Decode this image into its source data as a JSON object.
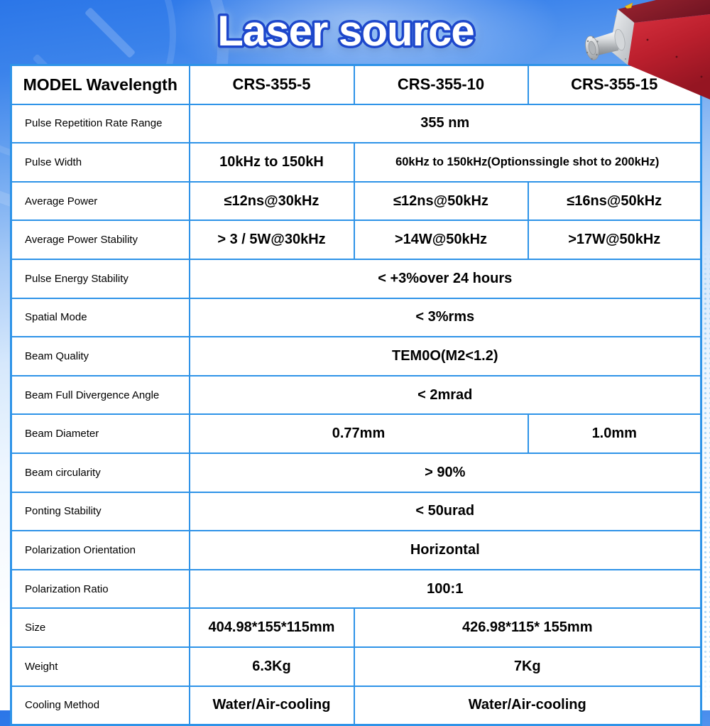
{
  "title": "Laser source",
  "colors": {
    "background_top_blue": "#2b76e8",
    "table_border_blue": "#2e93e8",
    "model_label_blue": "#2b7fe0",
    "title_outline_blue": "#1d47cb",
    "device_red": "#c02733"
  },
  "device": {
    "name": "red laser source module photo"
  },
  "table": {
    "header": {
      "model_label": "MODEL Wavelength",
      "models": [
        "CRS-355-5",
        "CRS-355-10",
        "CRS-355-15"
      ]
    },
    "rows": [
      {
        "label": "Pulse Repetition Rate Range",
        "cells": [
          {
            "text": "355 nm",
            "span": 3
          }
        ]
      },
      {
        "label": "Pulse Width",
        "cells": [
          {
            "text": "10kHz to 150kH",
            "span": 1
          },
          {
            "text": "60kHz to 150kHz(Optionssingle shot to  200kHz)",
            "span": 2,
            "small": true
          }
        ]
      },
      {
        "label": "Average Power",
        "cells": [
          {
            "text": "≤12ns@30kHz",
            "span": 1
          },
          {
            "text": "≤12ns@50kHz",
            "span": 1
          },
          {
            "text": "≤16ns@50kHz",
            "span": 1
          }
        ]
      },
      {
        "label": "Average Power Stability",
        "cells": [
          {
            "text": "> 3 / 5W@30kHz",
            "span": 1
          },
          {
            "text": ">14W@50kHz",
            "span": 1
          },
          {
            "text": ">17W@50kHz",
            "span": 1
          }
        ]
      },
      {
        "label": "Pulse Energy Stability",
        "cells": [
          {
            "text": "< +3%over 24 hours",
            "span": 3
          }
        ]
      },
      {
        "label": "Spatial Mode",
        "cells": [
          {
            "text": "< 3%rms",
            "span": 3
          }
        ]
      },
      {
        "label": "Beam Quality",
        "cells": [
          {
            "text": "TEM0O(M2<1.2)",
            "span": 3
          }
        ]
      },
      {
        "label": "Beam Full Divergence Angle",
        "cells": [
          {
            "text": "< 2mrad",
            "span": 3
          }
        ]
      },
      {
        "label": "Beam Diameter",
        "cells": [
          {
            "text": "0.77mm",
            "span": 2
          },
          {
            "text": "1.0mm",
            "span": 1
          }
        ]
      },
      {
        "label": "Beam circularity",
        "cells": [
          {
            "text": "> 90%",
            "span": 3
          }
        ]
      },
      {
        "label": "Ponting Stability",
        "cells": [
          {
            "text": "< 50urad",
            "span": 3
          }
        ]
      },
      {
        "label": "Polarization Orientation",
        "cells": [
          {
            "text": "Horizontal",
            "span": 3
          }
        ]
      },
      {
        "label": "Polarization Ratio",
        "cells": [
          {
            "text": "100:1",
            "span": 3
          }
        ]
      },
      {
        "label": "Size",
        "cells": [
          {
            "text": "404.98*155*115mm",
            "span": 1
          },
          {
            "text": "426.98*115* 155mm",
            "span": 2
          }
        ]
      },
      {
        "label": "Weight",
        "cells": [
          {
            "text": "6.3Kg",
            "span": 1
          },
          {
            "text": "7Kg",
            "span": 2
          }
        ]
      },
      {
        "label": "Cooling Method",
        "cells": [
          {
            "text": "Water/Air-cooling",
            "span": 1
          },
          {
            "text": "Water/Air-cooling",
            "span": 2
          }
        ]
      }
    ]
  }
}
